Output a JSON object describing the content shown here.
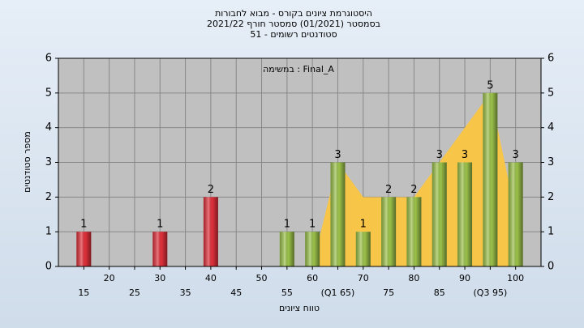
{
  "chart_data": {
    "type": "bar",
    "title_lines": [
      "היסטוגרמת ציונים בקורס - מבוא לחבורות",
      "בסמסטר  (01/2021)  סמסטר חורף 2021/22",
      "סטודנטים רשומים - 51"
    ],
    "annotation": "במשימה : Final_A",
    "x_label": "טווח ציונים",
    "y_label": "מספר סטודנטים",
    "categories": [
      "15",
      "20",
      "25",
      "30",
      "35",
      "40",
      "45",
      "50",
      "55",
      "60",
      "(Q1 65)",
      "70",
      "75",
      "80",
      "85",
      "90",
      "(Q3 95)",
      "100"
    ],
    "values": [
      1,
      0,
      0,
      1,
      0,
      2,
      0,
      0,
      1,
      1,
      3,
      1,
      2,
      2,
      3,
      3,
      5,
      3
    ],
    "colors": [
      "#e0303a",
      "#e0303a",
      "#e0303a",
      "#e0303a",
      "#e0303a",
      "#e0303a",
      "#e0303a",
      "#e0303a",
      "#9cc24a",
      "#9cc24a",
      "#9cc24a",
      "#9cc24a",
      "#9cc24a",
      "#9cc24a",
      "#9cc24a",
      "#9cc24a",
      "#9cc24a",
      "#9cc24a"
    ],
    "area": {
      "color": "#f7c548",
      "values": [
        null,
        null,
        null,
        null,
        null,
        null,
        null,
        null,
        null,
        0,
        3,
        2,
        2,
        2,
        3,
        4,
        5,
        1.5
      ]
    },
    "ylim": [
      0,
      6
    ],
    "yticks": [
      0,
      1,
      2,
      3,
      4,
      5,
      6
    ],
    "y2lim": [
      0,
      6
    ],
    "y2ticks": [
      0,
      1,
      2,
      3,
      4,
      5,
      6
    ],
    "grid": true
  }
}
